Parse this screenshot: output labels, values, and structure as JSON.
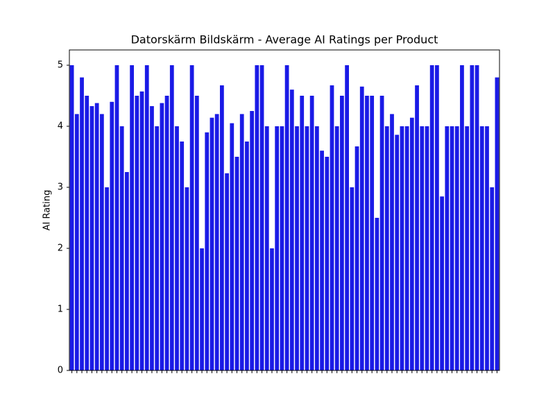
{
  "chart_data": {
    "type": "bar",
    "title": "Datorskärm Bildskärm - Average AI Ratings per Product",
    "y_label": "AI Rating",
    "categories": [
      null,
      null,
      null,
      null,
      null,
      null,
      null,
      null,
      null,
      null,
      null,
      null,
      null,
      null,
      null,
      null,
      null,
      null,
      null,
      null,
      null,
      null,
      null,
      null,
      null,
      null,
      null,
      null,
      null,
      null,
      null,
      null,
      null,
      null,
      null,
      null,
      null,
      null,
      null,
      null,
      null,
      null,
      null,
      null,
      null,
      null,
      null,
      null,
      null,
      null,
      null,
      null,
      null,
      null,
      null,
      null,
      null,
      null,
      null,
      null,
      null,
      null,
      null,
      null,
      null,
      null,
      null,
      null,
      null,
      null,
      null,
      null,
      null,
      null,
      null,
      null,
      null,
      null,
      null,
      null,
      null,
      null,
      null,
      null,
      null,
      null
    ],
    "values": [
      5,
      4.2,
      4.8,
      4.5,
      4.33,
      4.38,
      4.2,
      3,
      4.4,
      5,
      4,
      3.25,
      5,
      4.5,
      4.57,
      5,
      4.33,
      4,
      4.38,
      4.5,
      5,
      4,
      3.75,
      3,
      5,
      4.5,
      2,
      3.9,
      4.14,
      4.2,
      4.67,
      3.23,
      4.05,
      3.5,
      4.2,
      3.75,
      4.25,
      5,
      5,
      4,
      2,
      4,
      4,
      5,
      4.6,
      4,
      4.5,
      4,
      4.5,
      4,
      3.6,
      3.5,
      4.67,
      4,
      4.5,
      5,
      3,
      3.67,
      4.65,
      4.5,
      4.5,
      2.5,
      4.5,
      4,
      4.2,
      3.86,
      4,
      4,
      4.14,
      4.67,
      4,
      4,
      5,
      5,
      2.85,
      4,
      4,
      4,
      5,
      4,
      5,
      5,
      4,
      4,
      3,
      4.8
    ],
    "color": "#1a1ae6",
    "ylim": [
      0,
      5.25
    ],
    "yticks": [
      0,
      1,
      2,
      3,
      4,
      5
    ],
    "grid": false
  }
}
